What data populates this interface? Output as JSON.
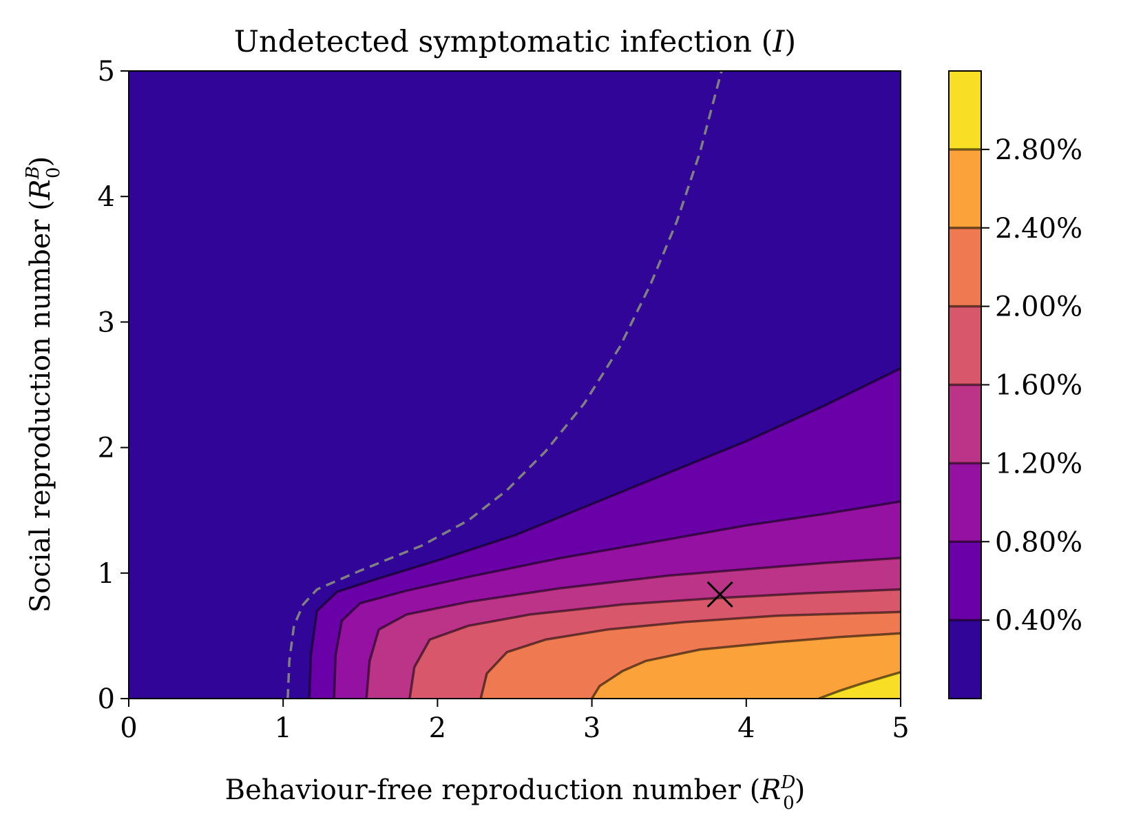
{
  "chart_data": {
    "type": "contour",
    "title": "Undetected symptomatic infection",
    "title_var": "I",
    "xlabel": "Behaviour-free reproduction number",
    "xlabel_sym": "R",
    "xlabel_sup": "D",
    "xlabel_sub": "0",
    "ylabel": "Social reproduction number",
    "ylabel_sym": "R",
    "ylabel_sup": "B",
    "ylabel_sub": "0",
    "xlim": [
      0,
      5
    ],
    "ylim": [
      0,
      5
    ],
    "xticks": [
      "0",
      "1",
      "2",
      "3",
      "4",
      "5"
    ],
    "yticks": [
      "0",
      "1",
      "2",
      "3",
      "4",
      "5"
    ],
    "colorbar": {
      "range": [
        0,
        3.2
      ],
      "levels": [
        0.0,
        0.4,
        0.8,
        1.2,
        1.6,
        2.0,
        2.4,
        2.8,
        3.2
      ],
      "fill_colors": [
        "#310597",
        "#6a00a8",
        "#9511a1",
        "#bc3488",
        "#d8576b",
        "#ef7a51",
        "#fba33a",
        "#f8de25"
      ],
      "tick_values": [
        0.4,
        0.8,
        1.2,
        1.6,
        2.0,
        2.4,
        2.8
      ],
      "tick_labels": [
        "0.40%",
        "0.80%",
        "1.20%",
        "1.60%",
        "2.00%",
        "2.40%",
        "2.80%"
      ]
    },
    "contour_lines": [
      {
        "level": 0.4,
        "points": [
          [
            1.17,
            0
          ],
          [
            1.18,
            0.35
          ],
          [
            1.22,
            0.7
          ],
          [
            1.35,
            0.85
          ],
          [
            1.6,
            0.95
          ],
          [
            2.0,
            1.1
          ],
          [
            2.5,
            1.3
          ],
          [
            3.0,
            1.55
          ],
          [
            3.5,
            1.8
          ],
          [
            4.0,
            2.05
          ],
          [
            4.5,
            2.33
          ],
          [
            5.0,
            2.63
          ]
        ]
      },
      {
        "level": 0.8,
        "points": [
          [
            1.33,
            0
          ],
          [
            1.34,
            0.35
          ],
          [
            1.38,
            0.62
          ],
          [
            1.5,
            0.76
          ],
          [
            1.8,
            0.86
          ],
          [
            2.2,
            0.97
          ],
          [
            2.8,
            1.12
          ],
          [
            3.5,
            1.27
          ],
          [
            4.0,
            1.38
          ],
          [
            4.5,
            1.47
          ],
          [
            5.0,
            1.57
          ]
        ]
      },
      {
        "level": 1.2,
        "points": [
          [
            1.54,
            0
          ],
          [
            1.56,
            0.3
          ],
          [
            1.62,
            0.55
          ],
          [
            1.8,
            0.67
          ],
          [
            2.2,
            0.77
          ],
          [
            2.8,
            0.88
          ],
          [
            3.5,
            0.98
          ],
          [
            4.0,
            1.03
          ],
          [
            4.5,
            1.08
          ],
          [
            5.0,
            1.12
          ]
        ]
      },
      {
        "level": 1.6,
        "points": [
          [
            1.82,
            0
          ],
          [
            1.85,
            0.25
          ],
          [
            1.95,
            0.47
          ],
          [
            2.2,
            0.58
          ],
          [
            2.6,
            0.67
          ],
          [
            3.2,
            0.75
          ],
          [
            3.8,
            0.8
          ],
          [
            4.4,
            0.84
          ],
          [
            5.0,
            0.87
          ]
        ]
      },
      {
        "level": 2.0,
        "points": [
          [
            2.28,
            0
          ],
          [
            2.32,
            0.2
          ],
          [
            2.45,
            0.37
          ],
          [
            2.7,
            0.47
          ],
          [
            3.1,
            0.55
          ],
          [
            3.6,
            0.61
          ],
          [
            4.2,
            0.66
          ],
          [
            5.0,
            0.69
          ]
        ]
      },
      {
        "level": 2.4,
        "points": [
          [
            3.0,
            0
          ],
          [
            3.05,
            0.1
          ],
          [
            3.2,
            0.22
          ],
          [
            3.35,
            0.3
          ],
          [
            3.7,
            0.39
          ],
          [
            4.2,
            0.45
          ],
          [
            4.6,
            0.49
          ],
          [
            5.0,
            0.52
          ]
        ]
      },
      {
        "level": 2.8,
        "points": [
          [
            4.47,
            0
          ],
          [
            4.6,
            0.06
          ],
          [
            4.75,
            0.12
          ],
          [
            5.0,
            0.21
          ]
        ]
      }
    ],
    "threshold_curve": {
      "style": "dashed",
      "color": "#808080",
      "points": [
        [
          1.03,
          0
        ],
        [
          1.04,
          0.3
        ],
        [
          1.07,
          0.58
        ],
        [
          1.13,
          0.75
        ],
        [
          1.22,
          0.87
        ],
        [
          1.5,
          1.02
        ],
        [
          1.9,
          1.22
        ],
        [
          2.2,
          1.42
        ],
        [
          2.45,
          1.66
        ],
        [
          2.7,
          1.97
        ],
        [
          2.95,
          2.35
        ],
        [
          3.18,
          2.8
        ],
        [
          3.38,
          3.3
        ],
        [
          3.55,
          3.8
        ],
        [
          3.7,
          4.35
        ],
        [
          3.84,
          5.0
        ]
      ]
    },
    "marker": {
      "x": 3.83,
      "y": 0.83,
      "symbol": "x"
    }
  }
}
